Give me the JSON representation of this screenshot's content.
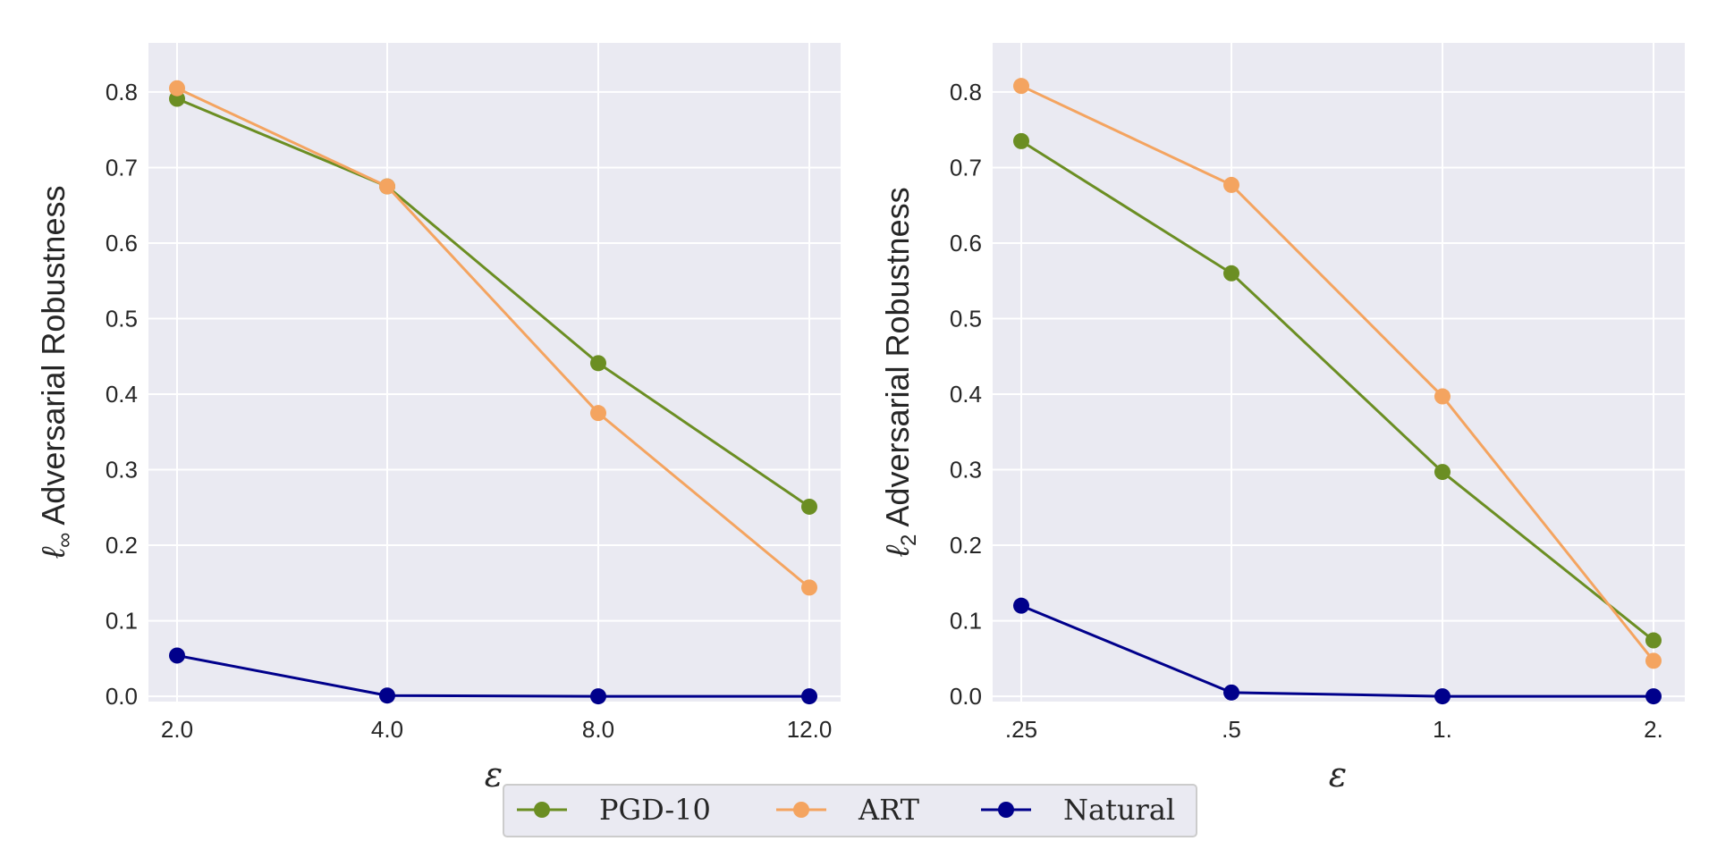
{
  "chart_data": [
    {
      "type": "line",
      "id": "linf",
      "categories": [
        "2.0",
        "4.0",
        "8.0",
        "12.0"
      ],
      "xlabel": "ε",
      "ylabel_prefix": "ℓ",
      "ylabel_sub": "∞",
      "ylabel_text": " Adversarial Robustness",
      "ylim": [
        -0.007,
        0.865
      ],
      "yticks": [
        0.0,
        0.1,
        0.2,
        0.3,
        0.4,
        0.5,
        0.6,
        0.7,
        0.8
      ],
      "grid": true,
      "series": [
        {
          "name": "PGD-10",
          "color": "#6b8e23",
          "values": [
            0.791,
            0.675,
            0.441,
            0.251
          ]
        },
        {
          "name": "ART",
          "color": "#f4a460",
          "values": [
            0.805,
            0.675,
            0.375,
            0.144
          ]
        },
        {
          "name": "Natural",
          "color": "#00008b",
          "values": [
            0.054,
            0.001,
            0.0,
            0.0
          ]
        }
      ]
    },
    {
      "type": "line",
      "id": "l2",
      "categories": [
        ".25",
        ".5",
        "1.",
        "2."
      ],
      "xlabel": "ε",
      "ylabel_prefix": "ℓ",
      "ylabel_sub": "2",
      "ylabel_text": " Adversarial Robustness",
      "ylim": [
        -0.007,
        0.865
      ],
      "yticks": [
        0.0,
        0.1,
        0.2,
        0.3,
        0.4,
        0.5,
        0.6,
        0.7,
        0.8
      ],
      "grid": true,
      "series": [
        {
          "name": "PGD-10",
          "color": "#6b8e23",
          "values": [
            0.735,
            0.56,
            0.297,
            0.074
          ]
        },
        {
          "name": "ART",
          "color": "#f4a460",
          "values": [
            0.808,
            0.677,
            0.397,
            0.047
          ]
        },
        {
          "name": "Natural",
          "color": "#00008b",
          "values": [
            0.12,
            0.005,
            0.0,
            0.0
          ]
        }
      ]
    }
  ],
  "legend": {
    "placement": "bottom-center",
    "items": [
      {
        "label": "PGD-10",
        "color": "#6b8e23"
      },
      {
        "label": "ART",
        "color": "#f4a460"
      },
      {
        "label": "Natural",
        "color": "#00008b"
      }
    ]
  },
  "style": {
    "axes_bg": "#eaeaf2",
    "grid_color": "#ffffff"
  }
}
